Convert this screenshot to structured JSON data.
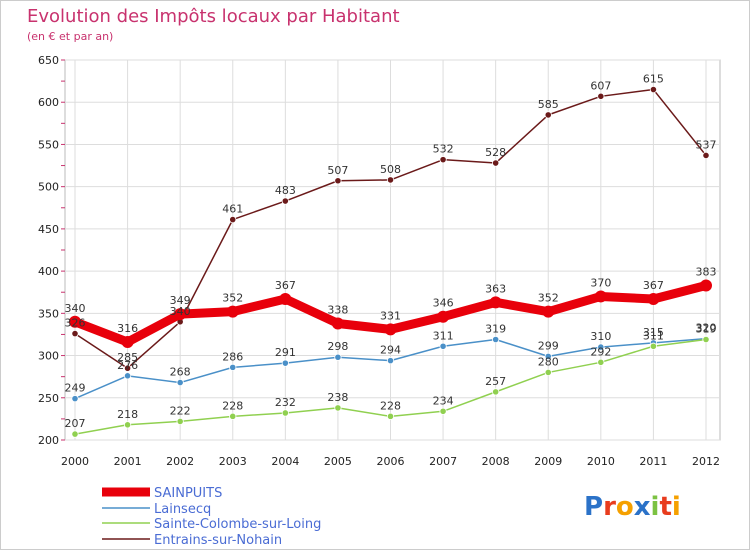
{
  "chart_data": {
    "type": "line",
    "title": "Evolution des Impôts locaux par Habitant",
    "subtitle": "(en € et par an)",
    "xlabel": "",
    "ylabel": "",
    "categories": [
      "2000",
      "2001",
      "2002",
      "2003",
      "2004",
      "2005",
      "2006",
      "2007",
      "2008",
      "2009",
      "2010",
      "2011",
      "2012"
    ],
    "ylim": [
      200,
      650
    ],
    "yticks": [
      200,
      250,
      300,
      350,
      400,
      450,
      500,
      550,
      600,
      650
    ],
    "grid": true,
    "legend_position": "bottom-left",
    "series": [
      {
        "name": "SAINPUITS",
        "color": "#e8000b",
        "values": [
          340,
          316,
          349,
          352,
          367,
          338,
          331,
          346,
          363,
          352,
          370,
          367,
          383
        ]
      },
      {
        "name": "Lainsecq",
        "color": "#4a90c8",
        "values": [
          249,
          276,
          268,
          286,
          291,
          298,
          294,
          311,
          319,
          299,
          310,
          315,
          320
        ]
      },
      {
        "name": "Sainte-Colombe-sur-Loing",
        "color": "#90d050",
        "values": [
          207,
          218,
          222,
          228,
          232,
          238,
          228,
          234,
          257,
          280,
          292,
          311,
          319
        ]
      },
      {
        "name": "Entrains-sur-Nohain",
        "color": "#6b1a1a",
        "values": [
          326,
          285,
          340,
          461,
          483,
          507,
          508,
          532,
          528,
          585,
          607,
          615,
          537
        ]
      }
    ]
  },
  "logo": {
    "text": "Proxiti"
  }
}
